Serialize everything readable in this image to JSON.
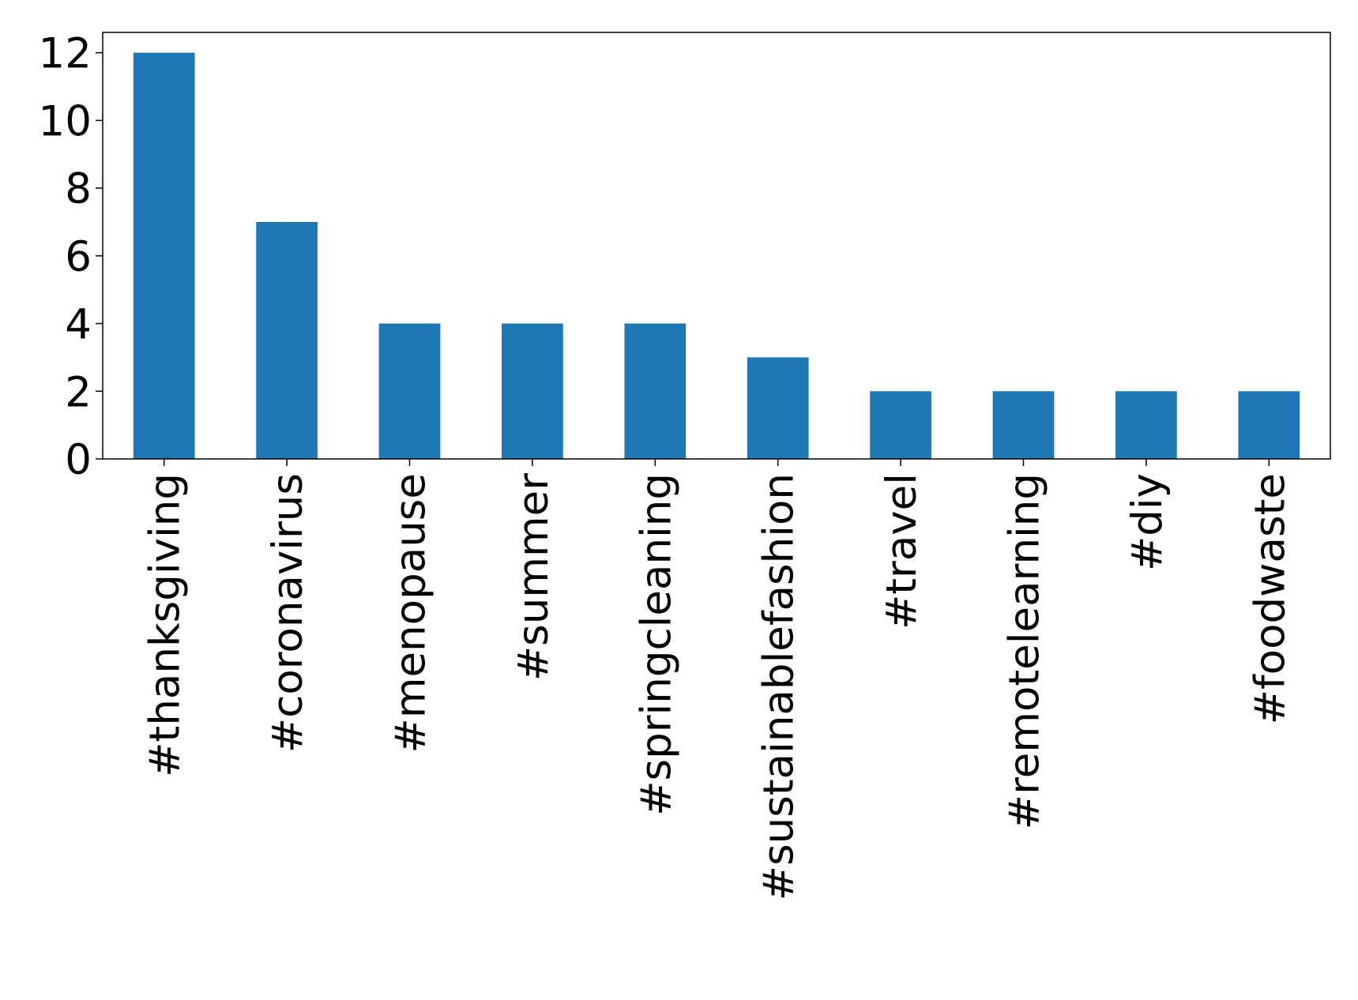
{
  "chart_data": {
    "type": "bar",
    "categories": [
      "#thanksgiving",
      "#coronavirus",
      "#menopause",
      "#summer",
      "#springcleaning",
      "#sustainablefashion",
      "#travel",
      "#remotelearning",
      "#diy",
      "#foodwaste"
    ],
    "values": [
      12,
      7,
      4,
      4,
      4,
      3,
      2,
      2,
      2,
      2
    ],
    "color": "#1f77b4",
    "ylim": [
      0,
      12.6
    ],
    "yticks": [
      0,
      2,
      4,
      6,
      8,
      10,
      12
    ],
    "grid": false
  }
}
